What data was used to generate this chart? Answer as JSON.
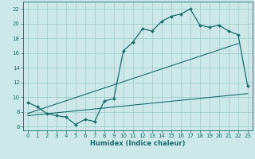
{
  "title": "",
  "xlabel": "Humidex (Indice chaleur)",
  "bg_color": "#cce8e8",
  "line_color": "#1a6b6b",
  "grid_color": "#99cccc",
  "xlim": [
    -0.5,
    23.5
  ],
  "ylim": [
    5.5,
    23.0
  ],
  "xticks": [
    0,
    1,
    2,
    3,
    4,
    5,
    6,
    7,
    8,
    9,
    10,
    11,
    12,
    13,
    14,
    15,
    16,
    17,
    18,
    19,
    20,
    21,
    22,
    23
  ],
  "yticks": [
    6,
    8,
    10,
    12,
    14,
    16,
    18,
    20,
    22
  ],
  "main_x": [
    0,
    1,
    2,
    3,
    4,
    5,
    6,
    7,
    8,
    9,
    10,
    11,
    12,
    13,
    14,
    15,
    16,
    17,
    18,
    19,
    20,
    21,
    22,
    23
  ],
  "main_y": [
    9.3,
    8.7,
    7.8,
    7.5,
    7.3,
    6.3,
    7.0,
    6.7,
    9.5,
    9.8,
    16.3,
    17.5,
    19.3,
    19.0,
    20.3,
    21.0,
    21.3,
    22.0,
    19.8,
    19.5,
    19.8,
    19.0,
    18.5,
    11.5
  ],
  "line1_x": [
    0,
    22
  ],
  "line1_y": [
    7.8,
    17.3
  ],
  "line2_x": [
    0,
    23
  ],
  "line2_y": [
    7.5,
    10.5
  ],
  "figsize": [
    3.2,
    2.0
  ],
  "dpi": 100,
  "tick_labelsize": 5,
  "xlabel_fontsize": 6
}
